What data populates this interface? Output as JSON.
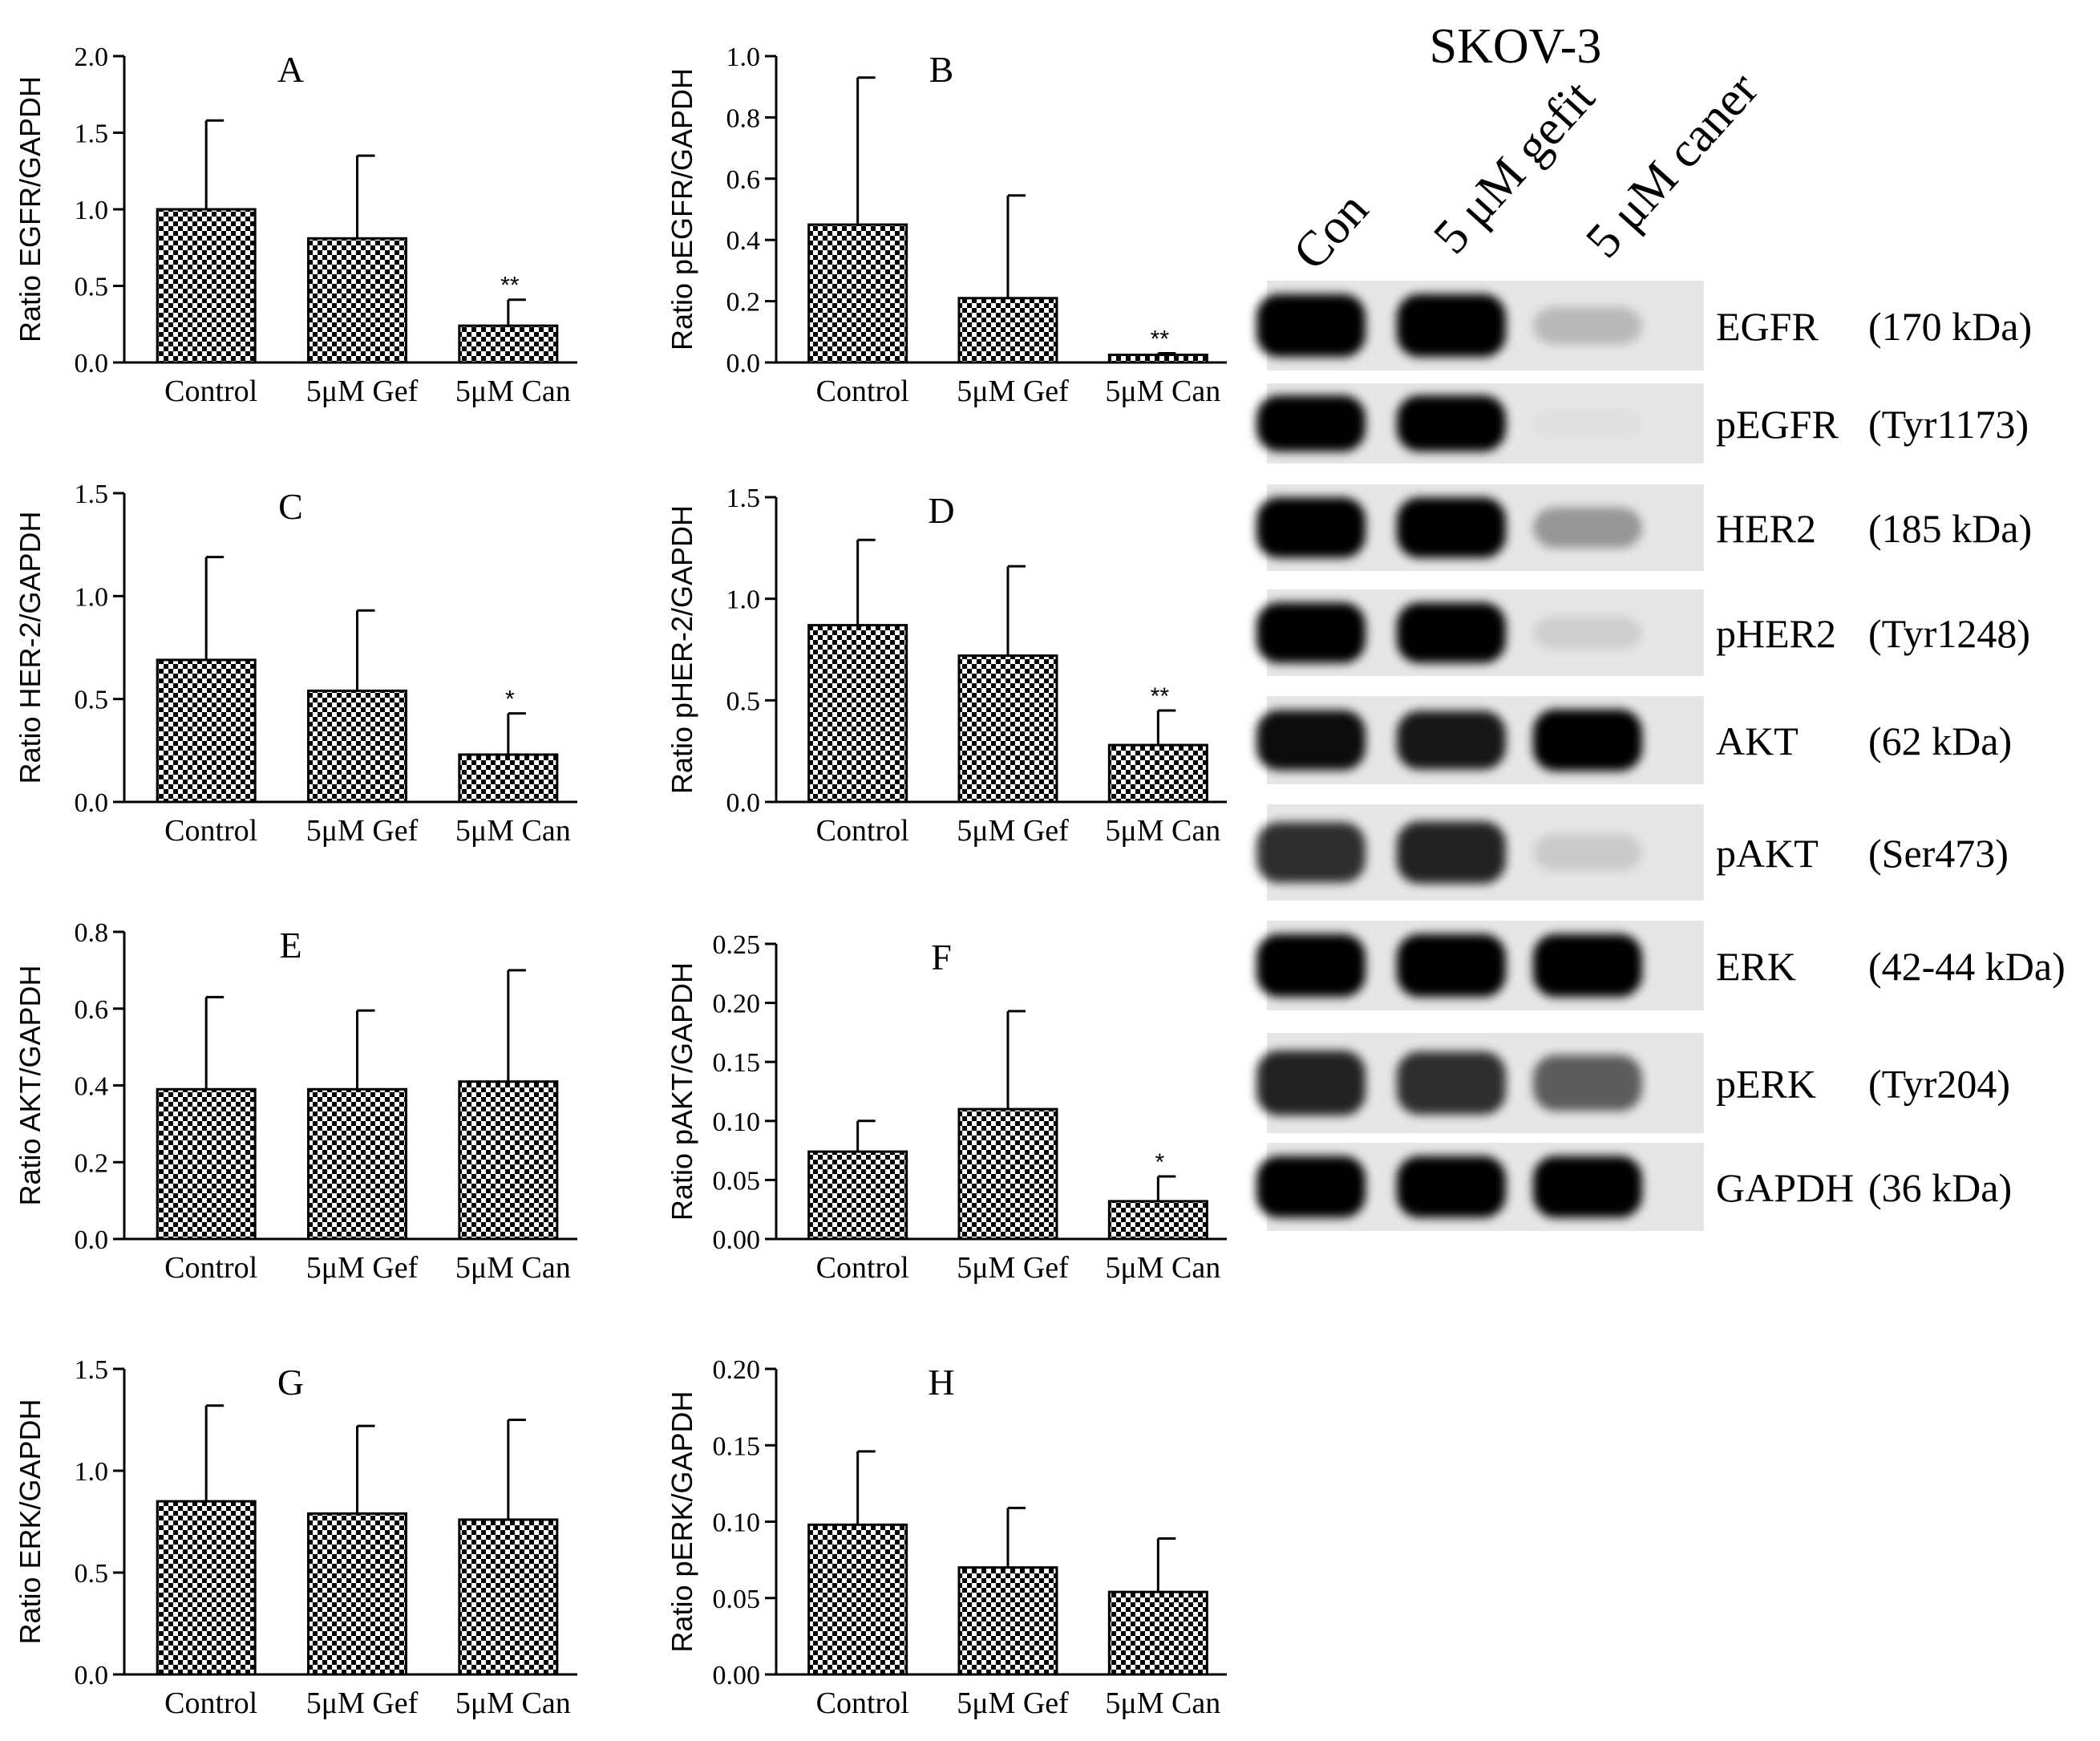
{
  "chart_data": [
    {
      "type": "bar",
      "panel": "A",
      "categories": [
        "Control",
        "5μM Gef",
        "5μM Can"
      ],
      "values": [
        1.0,
        0.81,
        0.24
      ],
      "errors": [
        0.58,
        0.54,
        0.17
      ],
      "significance": [
        "",
        "",
        "**"
      ],
      "ylabel": "Ratio EGFR/GAPDH",
      "ylim": [
        0,
        2.0
      ],
      "yticks": [
        "0.0",
        "0.5",
        "1.0",
        "1.5",
        "2.0"
      ]
    },
    {
      "type": "bar",
      "panel": "B",
      "categories": [
        "Control",
        "5μM Gef",
        "5μM Can"
      ],
      "values": [
        0.45,
        0.21,
        0.025
      ],
      "errors": [
        0.48,
        0.335,
        0.005
      ],
      "significance": [
        "",
        "",
        "**"
      ],
      "ylabel": "Ratio pEGFR/GAPDH",
      "ylim": [
        0,
        1.0
      ],
      "yticks": [
        "0.0",
        "0.2",
        "0.4",
        "0.6",
        "0.8",
        "1.0"
      ]
    },
    {
      "type": "bar",
      "panel": "C",
      "categories": [
        "Control",
        "5μM Gef",
        "5μM Can"
      ],
      "values": [
        0.69,
        0.54,
        0.23
      ],
      "errors": [
        0.5,
        0.39,
        0.2
      ],
      "significance": [
        "",
        "",
        "*"
      ],
      "ylabel": "Ratio HER-2/GAPDH",
      "ylim": [
        0,
        1.5
      ],
      "yticks": [
        "0.0",
        "0.5",
        "1.0",
        "1.5"
      ]
    },
    {
      "type": "bar",
      "panel": "D",
      "categories": [
        "Control",
        "5μM Gef",
        "5μM Can"
      ],
      "values": [
        0.87,
        0.72,
        0.28
      ],
      "errors": [
        0.42,
        0.44,
        0.17
      ],
      "significance": [
        "",
        "",
        "**"
      ],
      "ylabel": "Ratio pHER-2/GAPDH",
      "ylim": [
        0,
        1.5
      ],
      "yticks": [
        "0.0",
        "0.5",
        "1.0",
        "1.5"
      ]
    },
    {
      "type": "bar",
      "panel": "E",
      "categories": [
        "Control",
        "5μM Gef",
        "5μM Can"
      ],
      "values": [
        0.39,
        0.39,
        0.41
      ],
      "errors": [
        0.24,
        0.205,
        0.29
      ],
      "significance": [
        "",
        "",
        ""
      ],
      "ylabel": "Ratio AKT/GAPDH",
      "ylim": [
        0,
        0.8
      ],
      "yticks": [
        "0.0",
        "0.2",
        "0.4",
        "0.6",
        "0.8"
      ]
    },
    {
      "type": "bar",
      "panel": "F",
      "categories": [
        "Control",
        "5μM Gef",
        "5μM Can"
      ],
      "values": [
        0.074,
        0.11,
        0.032
      ],
      "errors": [
        0.026,
        0.083,
        0.021
      ],
      "significance": [
        "",
        "",
        "*"
      ],
      "ylabel": "Ratio pAKT/GAPDH",
      "ylim": [
        0,
        0.25
      ],
      "yticks": [
        "0.00",
        "0.05",
        "0.10",
        "0.15",
        "0.20",
        "0.25"
      ]
    },
    {
      "type": "bar",
      "panel": "G",
      "categories": [
        "Control",
        "5μM Gef",
        "5μM Can"
      ],
      "values": [
        0.85,
        0.79,
        0.76
      ],
      "errors": [
        0.47,
        0.43,
        0.49
      ],
      "significance": [
        "",
        "",
        ""
      ],
      "ylabel": "Ratio ERK/GAPDH",
      "ylim": [
        0,
        1.5
      ],
      "yticks": [
        "0.0",
        "0.5",
        "1.0",
        "1.5"
      ]
    },
    {
      "type": "bar",
      "panel": "H",
      "categories": [
        "Control",
        "5μM Gef",
        "5μM Can"
      ],
      "values": [
        0.098,
        0.07,
        0.054
      ],
      "errors": [
        0.048,
        0.039,
        0.035
      ],
      "significance": [
        "",
        "",
        ""
      ],
      "ylabel": "Ratio pERK/GAPDH",
      "ylim": [
        0,
        0.2
      ],
      "yticks": [
        "0.00",
        "0.05",
        "0.10",
        "0.15",
        "0.20"
      ]
    }
  ],
  "blot": {
    "title": "SKOV-3",
    "lanes": [
      "Con",
      "5 μM gefit",
      "5 μM caner"
    ],
    "bands": [
      {
        "name": "EGFR",
        "size": "(170 kDa)",
        "intensity": [
          1.0,
          1.0,
          0.2
        ]
      },
      {
        "name": "pEGFR",
        "size": "(Tyr1173)",
        "intensity": [
          1.0,
          1.0,
          0.03
        ]
      },
      {
        "name": "HER2",
        "size": "(185 kDa)",
        "intensity": [
          1.0,
          1.0,
          0.35
        ]
      },
      {
        "name": "pHER2",
        "size": "(Tyr1248)",
        "intensity": [
          1.0,
          1.0,
          0.1
        ]
      },
      {
        "name": "AKT",
        "size": "(62 kDa)",
        "intensity": [
          0.95,
          0.9,
          1.0
        ]
      },
      {
        "name": "pAKT",
        "size": "(Ser473)",
        "intensity": [
          0.8,
          0.85,
          0.12
        ]
      },
      {
        "name": "ERK",
        "size": "(42-44 kDa)",
        "intensity": [
          1.0,
          1.0,
          1.0
        ]
      },
      {
        "name": "pERK",
        "size": "(Tyr204)",
        "intensity": [
          0.85,
          0.8,
          0.6
        ]
      },
      {
        "name": "GAPDH",
        "size": "(36 kDa)",
        "intensity": [
          1.0,
          1.0,
          1.0
        ]
      }
    ]
  },
  "colors": {
    "bar_fill_a": "#ffffff",
    "bar_fill_b": "#000000",
    "axis": "#000000",
    "blot_background": "#e6e6e6",
    "blot_band": "#000000"
  }
}
